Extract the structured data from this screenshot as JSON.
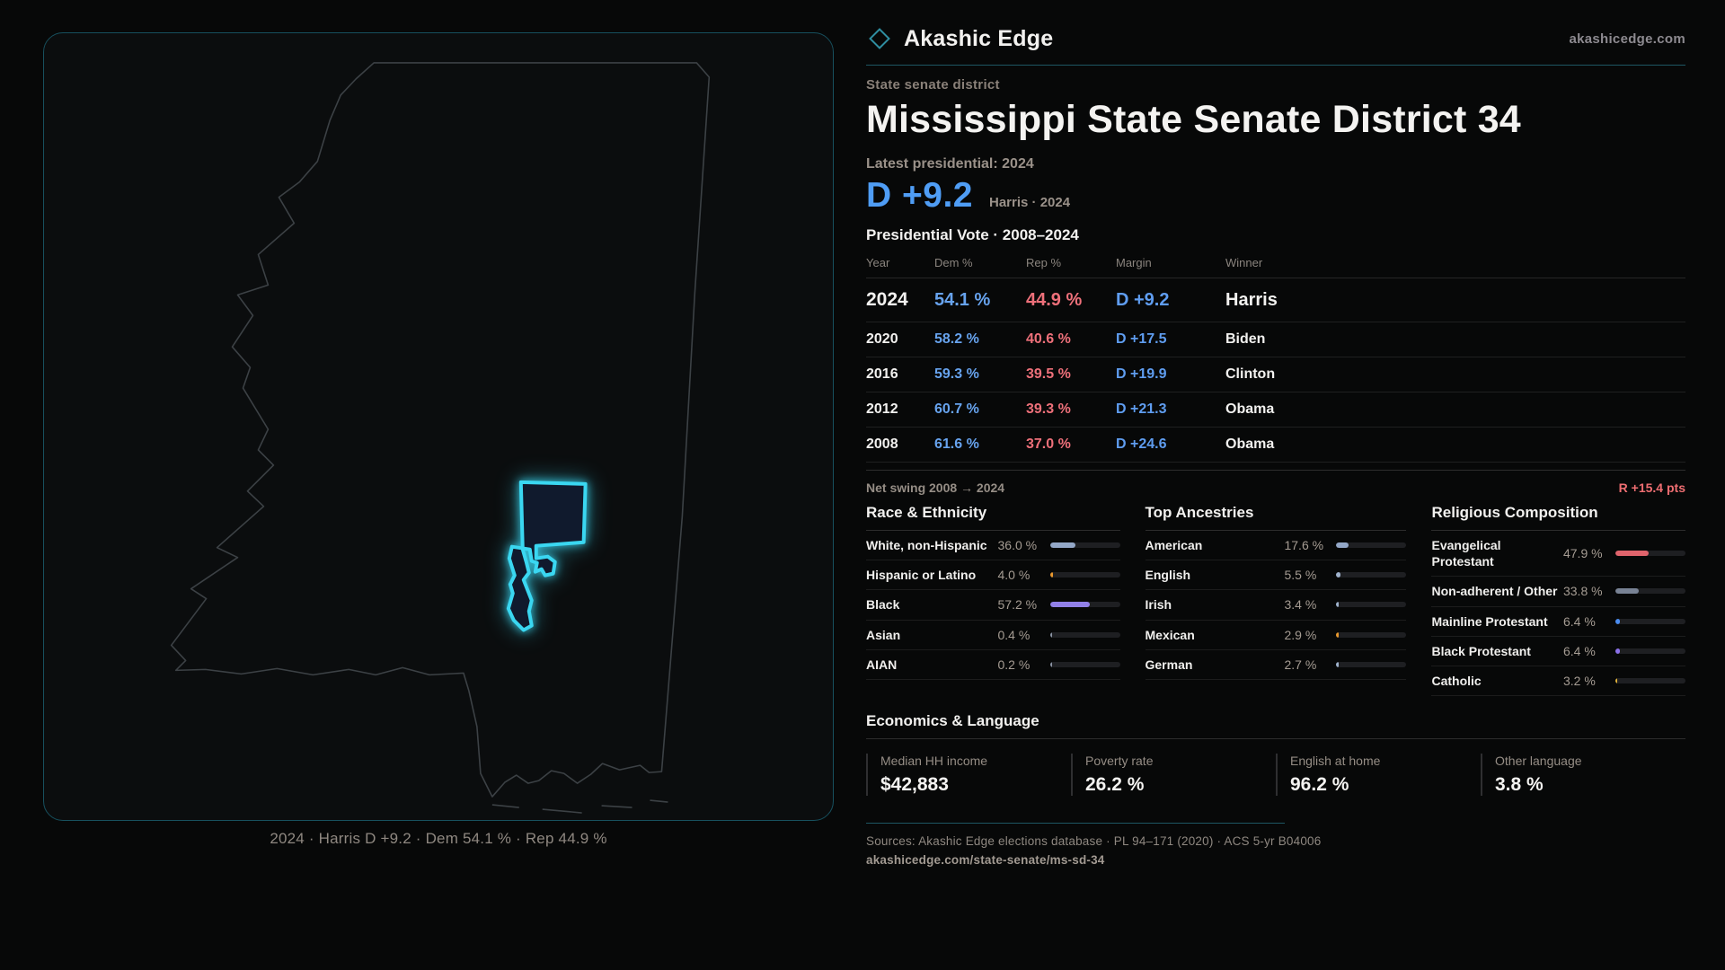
{
  "brand": {
    "name": "Akashic Edge",
    "url": "akashicedge.com"
  },
  "page": {
    "kicker": "State senate district",
    "title": "Mississippi State Senate District 34",
    "latest_label": "Latest presidential: 2024",
    "headline_margin": "D +9.2",
    "headline_context": "Harris · 2024",
    "table_title": "Presidential Vote · 2008–2024"
  },
  "results_table": {
    "columns": [
      "Year",
      "Dem %",
      "Rep %",
      "Margin",
      "Winner"
    ],
    "rows": [
      {
        "year": "2024",
        "dem": "54.1 %",
        "rep": "44.9 %",
        "margin": "D +9.2",
        "winner": "Harris",
        "highlight": true
      },
      {
        "year": "2020",
        "dem": "58.2 %",
        "rep": "40.6 %",
        "margin": "D +17.5",
        "winner": "Biden",
        "highlight": false
      },
      {
        "year": "2016",
        "dem": "59.3 %",
        "rep": "39.5 %",
        "margin": "D +19.9",
        "winner": "Clinton",
        "highlight": false
      },
      {
        "year": "2012",
        "dem": "60.7 %",
        "rep": "39.3 %",
        "margin": "D +21.3",
        "winner": "Obama",
        "highlight": false
      },
      {
        "year": "2008",
        "dem": "61.6 %",
        "rep": "37.0 %",
        "margin": "D +24.6",
        "winner": "Obama",
        "highlight": false
      }
    ]
  },
  "net_swing": {
    "label": "Net swing 2008 → 2024",
    "value": "R +15.4 pts"
  },
  "chart_data": [
    {
      "type": "bar",
      "title": "Race & Ethnicity",
      "categories": [
        "White, non-Hispanic",
        "Hispanic or Latino",
        "Black",
        "Asian",
        "AIAN"
      ],
      "values": [
        36.0,
        4.0,
        57.2,
        0.4,
        0.2
      ],
      "value_labels": [
        "36.0 %",
        "4.0 %",
        "57.2 %",
        "0.4 %",
        "0.2 %"
      ],
      "bar_colors": [
        "#93a7c7",
        "#e8982e",
        "#9180e8",
        "#8a93a3",
        "#8a93a3"
      ],
      "xlim": [
        0,
        100
      ]
    },
    {
      "type": "bar",
      "title": "Top Ancestries",
      "categories": [
        "American",
        "English",
        "Irish",
        "Mexican",
        "German"
      ],
      "values": [
        17.6,
        5.5,
        3.4,
        2.9,
        2.7
      ],
      "value_labels": [
        "17.6 %",
        "5.5 %",
        "3.4 %",
        "2.9 %",
        "2.7 %"
      ],
      "bar_colors": [
        "#93a7c7",
        "#9fb2cc",
        "#9fb2cc",
        "#e8982e",
        "#9fb2cc"
      ],
      "xlim": [
        0,
        100
      ]
    },
    {
      "type": "bar",
      "title": "Religious Composition",
      "categories": [
        "Evangelical Protestant",
        "Non-adherent / Other",
        "Mainline Protestant",
        "Black Protestant",
        "Catholic"
      ],
      "values": [
        47.9,
        33.8,
        6.4,
        6.4,
        3.2
      ],
      "value_labels": [
        "47.9 %",
        "33.8 %",
        "6.4 %",
        "6.4 %",
        "3.2 %"
      ],
      "bar_colors": [
        "#e0646c",
        "#788294",
        "#4a8cf0",
        "#8a70e8",
        "#e0b23a"
      ],
      "xlim": [
        0,
        100
      ]
    }
  ],
  "economics": {
    "title": "Economics & Language",
    "stats": [
      {
        "label": "Median HH income",
        "value": "$42,883"
      },
      {
        "label": "Poverty rate",
        "value": "26.2 %"
      },
      {
        "label": "English at home",
        "value": "96.2 %"
      },
      {
        "label": "Other language",
        "value": "3.8 %"
      }
    ]
  },
  "map": {
    "caption": "2024 · Harris D +9.2 · Dem 54.1 % · Rep 44.9 %"
  },
  "footer": {
    "sources": "Sources: Akashic Edge elections database · PL 94–171 (2020) · ACS 5-yr B04006",
    "permalink": "akashicedge.com/state-senate/ms-sd-34"
  },
  "colors": {
    "dem_blue": "#67a3ee",
    "rep_red": "#ee707a",
    "margin_blue": "#4f9df5",
    "swing_red": "#ef6e72",
    "district_cyan": "#3ad7f1",
    "divider_teal": "#1d5763",
    "muted_text": "#9a9189",
    "background": "#070808"
  }
}
